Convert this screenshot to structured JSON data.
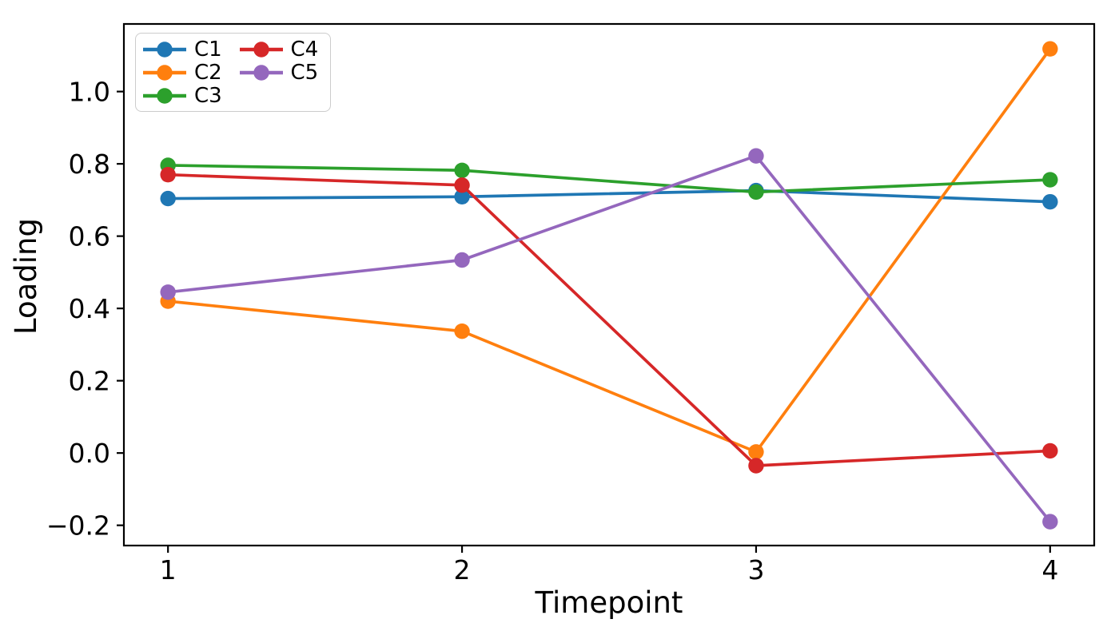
{
  "figure": {
    "background": "#ffffff"
  },
  "chart_data": {
    "type": "line",
    "title": "",
    "xlabel": "Timepoint",
    "ylabel": "Loading",
    "x": [
      1,
      2,
      3,
      4
    ],
    "x_tick_labels": [
      "1",
      "2",
      "3",
      "4"
    ],
    "y_ticks": [
      -0.2,
      0.0,
      0.2,
      0.4,
      0.6,
      0.8,
      1.0
    ],
    "y_tick_labels": [
      "−0.2",
      "0.0",
      "0.2",
      "0.4",
      "0.6",
      "0.8",
      "1.0"
    ],
    "xlim": [
      0.85,
      4.15
    ],
    "ylim": [
      -0.256,
      1.187
    ],
    "grid": false,
    "legend": {
      "position": "upper left",
      "columns": 2
    },
    "series": [
      {
        "name": "C1",
        "color": "#1f77b4",
        "values": [
          0.704,
          0.709,
          0.726,
          0.695
        ]
      },
      {
        "name": "C2",
        "color": "#ff7f0e",
        "values": [
          0.42,
          0.337,
          0.003,
          1.118
        ]
      },
      {
        "name": "C3",
        "color": "#2ca02c",
        "values": [
          0.796,
          0.782,
          0.722,
          0.756
        ]
      },
      {
        "name": "C4",
        "color": "#d62728",
        "values": [
          0.77,
          0.741,
          -0.035,
          0.006
        ]
      },
      {
        "name": "C5",
        "color": "#9467bd",
        "values": [
          0.445,
          0.534,
          0.822,
          -0.19
        ]
      }
    ]
  }
}
